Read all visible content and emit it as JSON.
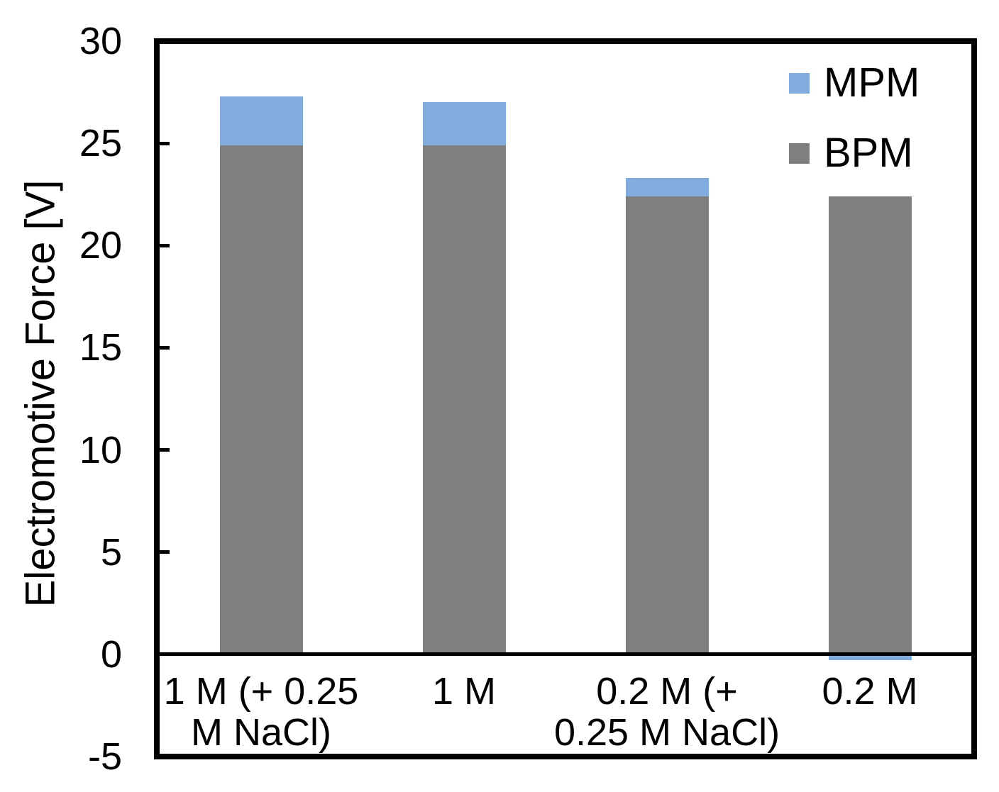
{
  "chart_data": {
    "type": "bar",
    "stacked": true,
    "title": "",
    "xlabel": "",
    "ylabel": "Electromotive Force [V]",
    "ylim": [
      -5,
      30
    ],
    "yticks": [
      30,
      25,
      20,
      15,
      10,
      5,
      0,
      -5
    ],
    "grid": false,
    "legend_position": "top-right-inside",
    "axis_color": "#000000",
    "background_color": "#FFFFFF",
    "categories": [
      "1 M (+ 0.25 M NaCl)",
      "1 M",
      "0.2 M (+ 0.25 M NaCl)",
      "0.2 M"
    ],
    "categories_wrapped": [
      [
        "1 M (+ 0.25",
        "M NaCl)"
      ],
      [
        "1 M"
      ],
      [
        "0.2 M (+",
        "0.25 M NaCl)"
      ],
      [
        "0.2 M"
      ]
    ],
    "series": [
      {
        "name": "MPM",
        "color": "#82ACDE",
        "values": [
          2.4,
          2.1,
          0.9,
          -0.3
        ]
      },
      {
        "name": "BPM",
        "color": "#7F7F7F",
        "values": [
          24.9,
          24.9,
          22.4,
          22.4
        ]
      }
    ],
    "stack_order_bottom_to_top": [
      "BPM",
      "MPM"
    ],
    "totals": [
      27.3,
      27.0,
      23.3,
      22.4
    ]
  }
}
